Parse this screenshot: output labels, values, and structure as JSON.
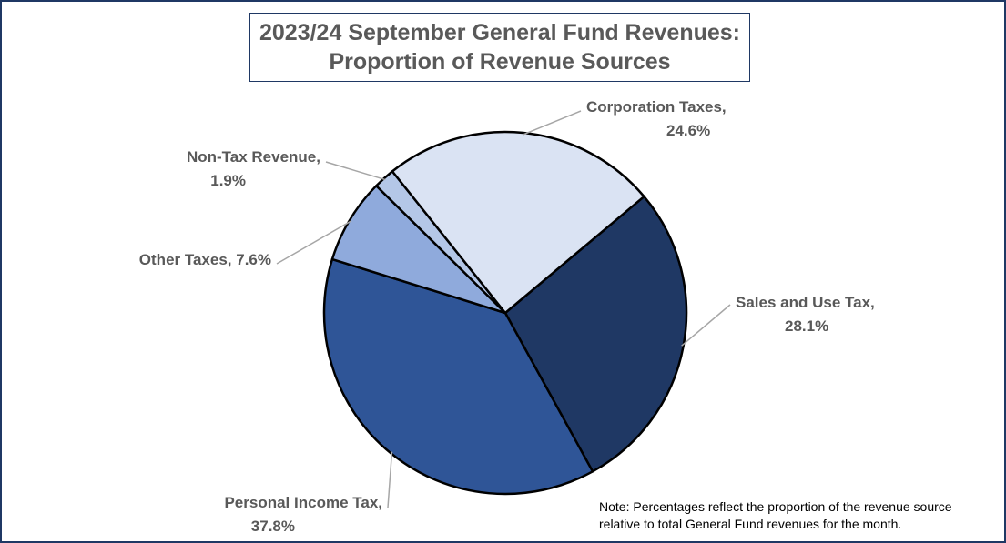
{
  "title": {
    "line1": "2023/24 September General Fund Revenues:",
    "line2": "Proportion of Revenue Sources"
  },
  "note": {
    "line1": "Note: Percentages reflect the proportion of the revenue source",
    "line2": "relative to total General Fund revenues for the month."
  },
  "chart_data": {
    "type": "pie",
    "title": "2023/24 September General Fund Revenues: Proportion of Revenue Sources",
    "slices": [
      {
        "name": "Sales and Use Tax",
        "value": 28.1,
        "label_line1": "Sales and Use Tax,",
        "label_line2": "28.1%",
        "color": "#1f3864"
      },
      {
        "name": "Personal Income Tax",
        "value": 37.8,
        "label_line1": "Personal Income Tax,",
        "label_line2": "37.8%",
        "color": "#2f5597"
      },
      {
        "name": "Other Taxes",
        "value": 7.6,
        "label_line1": "Other Taxes, 7.6%",
        "label_line2": "",
        "color": "#8faadc"
      },
      {
        "name": "Non-Tax Revenue",
        "value": 1.9,
        "label_line1": "Non-Tax Revenue,",
        "label_line2": "1.9%",
        "color": "#b4c7e7"
      },
      {
        "name": "Corporation Taxes",
        "value": 24.6,
        "label_line1": "Corporation Taxes,",
        "label_line2": "24.6%",
        "color": "#dae3f3"
      }
    ],
    "legend": "none",
    "data_labels": "outside-with-leader-lines"
  }
}
